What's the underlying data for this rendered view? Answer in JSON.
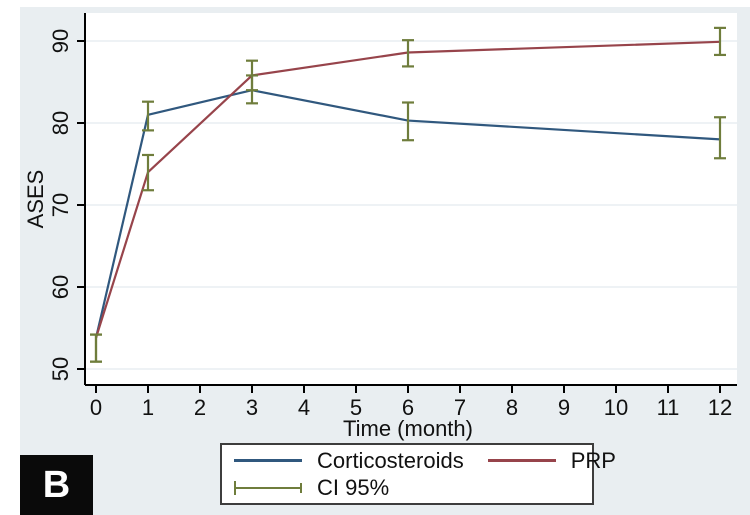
{
  "panel": {
    "label": "B"
  },
  "colors": {
    "page_bg": "#ffffff",
    "panel_bg": "#e9eef1",
    "plot_bg": "#ffffff",
    "gridline": "#e9eef2",
    "axis": "#000000",
    "text": "#111111",
    "corticosteroids": "#30587e",
    "prp": "#97444b",
    "ci": "#6f7d3c",
    "legend_border": "#3d3d3d",
    "panel_label_bg": "#0a0a0a",
    "panel_label_fg": "#ffffff"
  },
  "chart_data": {
    "type": "line",
    "title": "",
    "xlabel": "Time (month)",
    "ylabel": "ASES",
    "x": [
      0,
      1,
      3,
      6,
      12
    ],
    "xticks": [
      0,
      1,
      2,
      3,
      4,
      5,
      6,
      7,
      8,
      9,
      10,
      11,
      12
    ],
    "yticks": [
      50,
      60,
      70,
      80,
      90
    ],
    "xlim": [
      -0.2,
      12.33
    ],
    "ylim": [
      48,
      93.4
    ],
    "grid": true,
    "legend_position": "bottom-center",
    "series": [
      {
        "name": "Corticosteroids",
        "color_key": "corticosteroids",
        "values": [
          53.8,
          81.0,
          84.0,
          80.3,
          78.0
        ],
        "ci_low": [
          50.9,
          79.1,
          82.4,
          77.9,
          75.7
        ],
        "ci_high": [
          54.2,
          82.6,
          85.8,
          82.5,
          80.7
        ]
      },
      {
        "name": "PRP",
        "color_key": "prp",
        "values": [
          53.8,
          74.0,
          85.8,
          88.6,
          89.9
        ],
        "ci_low": [
          50.9,
          71.8,
          84.0,
          86.9,
          88.3
        ],
        "ci_high": [
          54.2,
          76.1,
          87.6,
          90.1,
          91.6
        ]
      }
    ],
    "ci_legend_label": "CI 95%"
  }
}
